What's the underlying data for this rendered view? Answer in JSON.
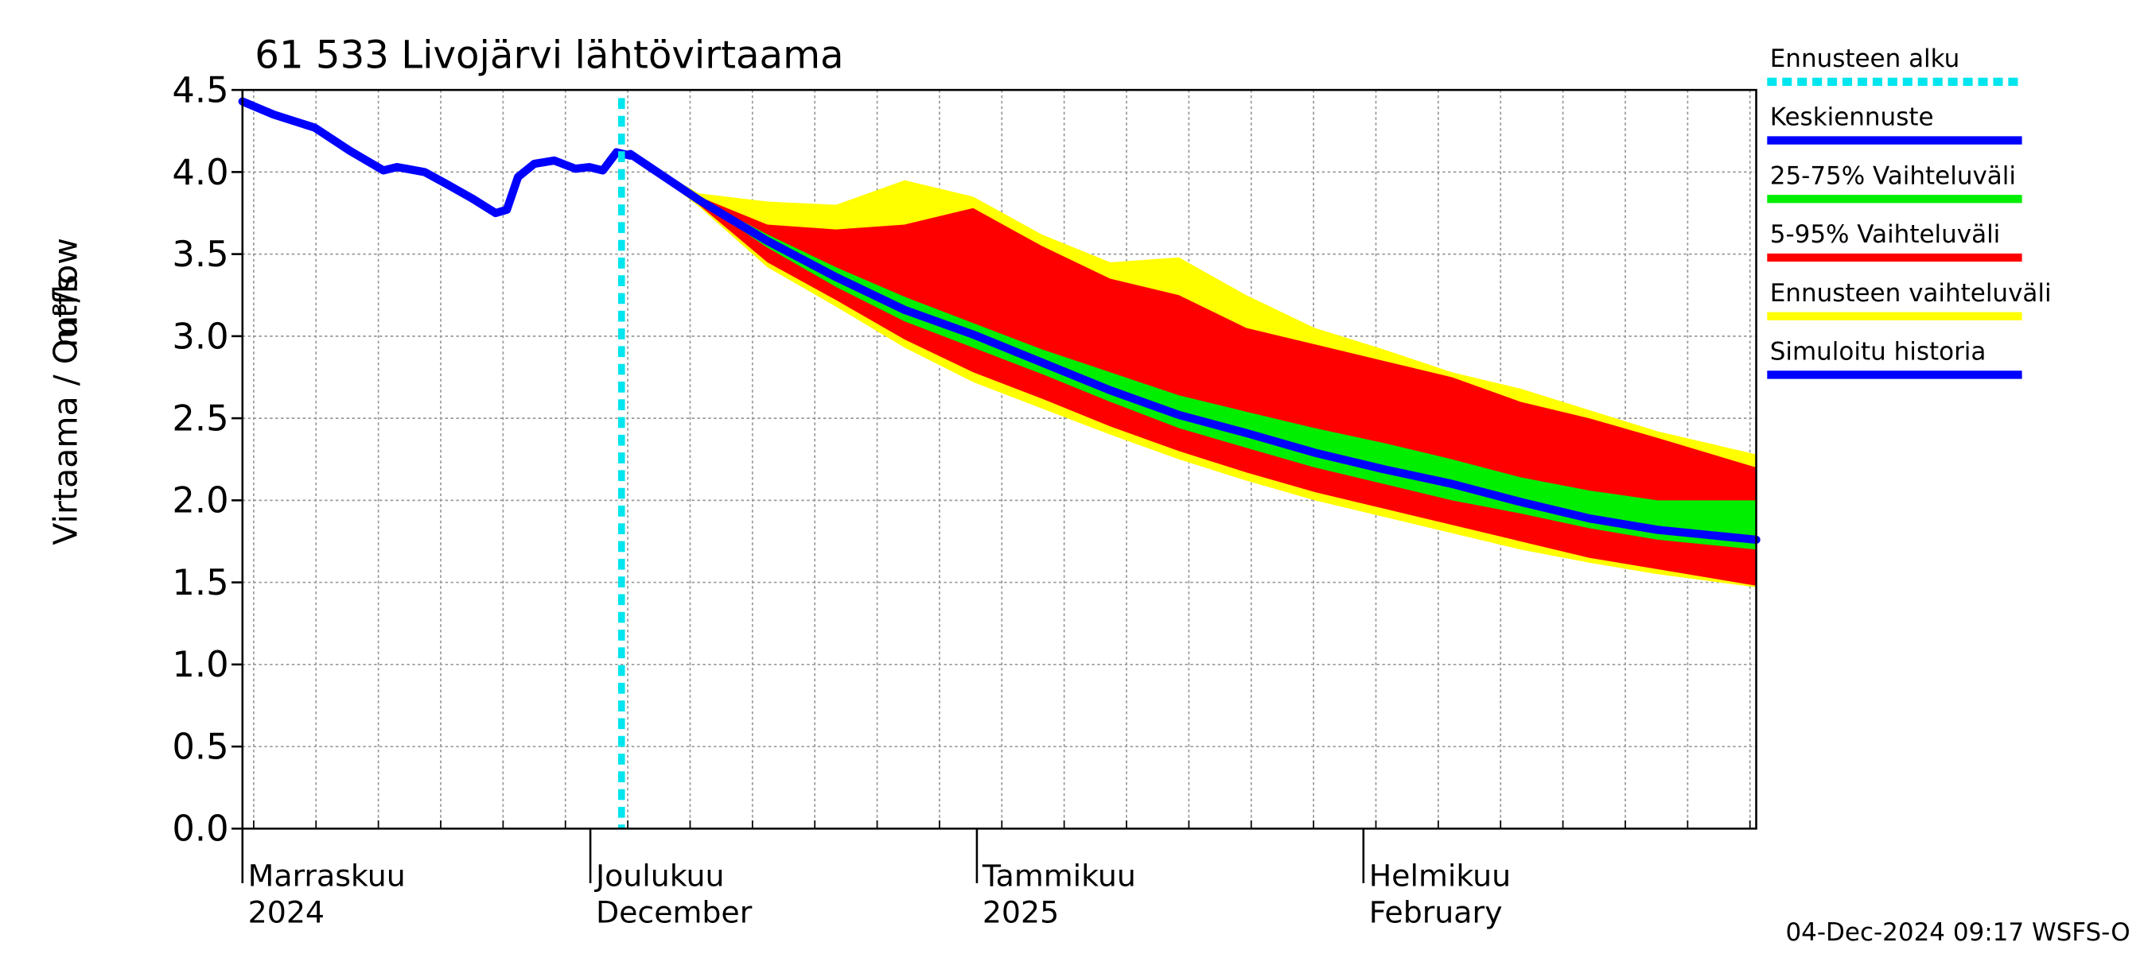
{
  "chart_data": {
    "type": "line",
    "title": "61 533 Livojärvi lähtövirtaama",
    "ylabel": "Virtaama / Outflow",
    "yunit": "m³/s",
    "footer": "04-Dec-2024 09:17 WSFS-O",
    "xlim": [
      2.1,
      123.5
    ],
    "ylim": [
      0,
      4.5
    ],
    "yticks": [
      {
        "value": 0,
        "label": "0.0"
      },
      0.5,
      {
        "value": 1,
        "label": "1.0"
      },
      1.5,
      {
        "value": 2,
        "label": "2.0"
      },
      2.5,
      {
        "value": 3,
        "label": "3.0"
      },
      3.5,
      {
        "value": 4,
        "label": "4.0"
      },
      4.5
    ],
    "xticks": [
      {
        "value": 2.1,
        "label": [
          "Marraskuu",
          "2024"
        ]
      },
      {
        "value": 30,
        "label": [
          "Joulukuu",
          "December"
        ]
      },
      {
        "value": 61,
        "label": [
          "Tammikuu",
          "2025"
        ]
      },
      {
        "value": 92,
        "label": [
          "Helmikuu",
          "February"
        ]
      }
    ],
    "xminor": [
      3,
      8,
      13,
      18,
      23,
      28,
      33,
      38,
      43,
      48,
      53,
      58,
      63,
      68,
      73,
      78,
      83,
      88,
      93,
      98,
      103,
      108,
      113,
      118,
      123
    ],
    "grid": true,
    "forecast_start": {
      "name": "Ennusteen alku",
      "color": "#00e5ee",
      "x": 32.5
    },
    "series": [
      {
        "name": "Keskiennuste",
        "color": "#0000ff",
        "x": [
          33.2,
          38.7,
          44.2,
          49.7,
          55.2,
          60.7,
          66.2,
          71.7,
          77.2,
          82.6,
          88.1,
          93.6,
          99.1,
          104.6,
          110.1,
          115.6,
          123.5
        ],
        "values": [
          4.11,
          3.83,
          3.58,
          3.36,
          3.16,
          3.01,
          2.84,
          2.67,
          2.52,
          2.41,
          2.29,
          2.19,
          2.1,
          1.99,
          1.89,
          1.82,
          1.76
        ]
      },
      {
        "name": "Simuloitu historia",
        "color": "#0000ff",
        "x": [
          2.1,
          4.6,
          7.9,
          10.7,
          13.4,
          14.5,
          16.7,
          18.4,
          20.5,
          22.4,
          23.3,
          24.2,
          25.5,
          27.1,
          28.8,
          29.9,
          31.0,
          32.1,
          33.2
        ],
        "values": [
          4.43,
          4.35,
          4.27,
          4.13,
          4.01,
          4.03,
          4.0,
          3.93,
          3.84,
          3.75,
          3.77,
          3.97,
          4.05,
          4.07,
          4.02,
          4.03,
          4.01,
          4.12,
          4.1
        ]
      }
    ],
    "bands": [
      {
        "name": "Ennusteen vaihteluväli",
        "color": "#ffff00",
        "x": [
          33.2,
          38.7,
          44.2,
          49.7,
          55.2,
          60.7,
          66.2,
          71.7,
          77.2,
          82.6,
          88.1,
          93.6,
          99.1,
          104.6,
          110.1,
          115.6,
          123.5
        ],
        "upper": [
          4.11,
          3.87,
          3.82,
          3.8,
          3.95,
          3.85,
          3.62,
          3.45,
          3.48,
          3.25,
          3.05,
          2.92,
          2.78,
          2.68,
          2.55,
          2.42,
          2.28
        ],
        "lower": [
          4.11,
          3.79,
          3.42,
          3.18,
          2.93,
          2.72,
          2.56,
          2.4,
          2.25,
          2.12,
          2.0,
          1.9,
          1.8,
          1.7,
          1.62,
          1.55,
          1.47
        ]
      },
      {
        "name": "5-95% Vaihteluväli",
        "color": "#ff0000",
        "x": [
          33.2,
          38.7,
          44.2,
          49.7,
          55.2,
          60.7,
          66.2,
          71.7,
          77.2,
          82.6,
          88.1,
          93.6,
          99.1,
          104.6,
          110.1,
          115.6,
          123.5
        ],
        "upper": [
          4.11,
          3.85,
          3.68,
          3.65,
          3.68,
          3.78,
          3.55,
          3.35,
          3.25,
          3.05,
          2.95,
          2.85,
          2.75,
          2.6,
          2.5,
          2.38,
          2.2
        ],
        "lower": [
          4.11,
          3.8,
          3.45,
          3.22,
          2.98,
          2.78,
          2.62,
          2.45,
          2.3,
          2.17,
          2.05,
          1.95,
          1.85,
          1.75,
          1.65,
          1.58,
          1.48
        ]
      },
      {
        "name": "25-75% Vaihteluväli",
        "color": "#00ee00",
        "x": [
          33.2,
          38.7,
          44.2,
          49.7,
          55.2,
          60.7,
          66.2,
          71.7,
          77.2,
          82.6,
          88.1,
          93.6,
          99.1,
          104.6,
          110.1,
          115.6,
          123.5
        ],
        "upper": [
          4.11,
          3.84,
          3.62,
          3.42,
          3.24,
          3.08,
          2.92,
          2.78,
          2.64,
          2.54,
          2.44,
          2.35,
          2.25,
          2.14,
          2.06,
          2.0,
          2.0
        ],
        "lower": [
          4.11,
          3.82,
          3.54,
          3.3,
          3.09,
          2.93,
          2.77,
          2.6,
          2.44,
          2.32,
          2.2,
          2.1,
          2.0,
          1.92,
          1.83,
          1.76,
          1.7
        ]
      }
    ]
  }
}
